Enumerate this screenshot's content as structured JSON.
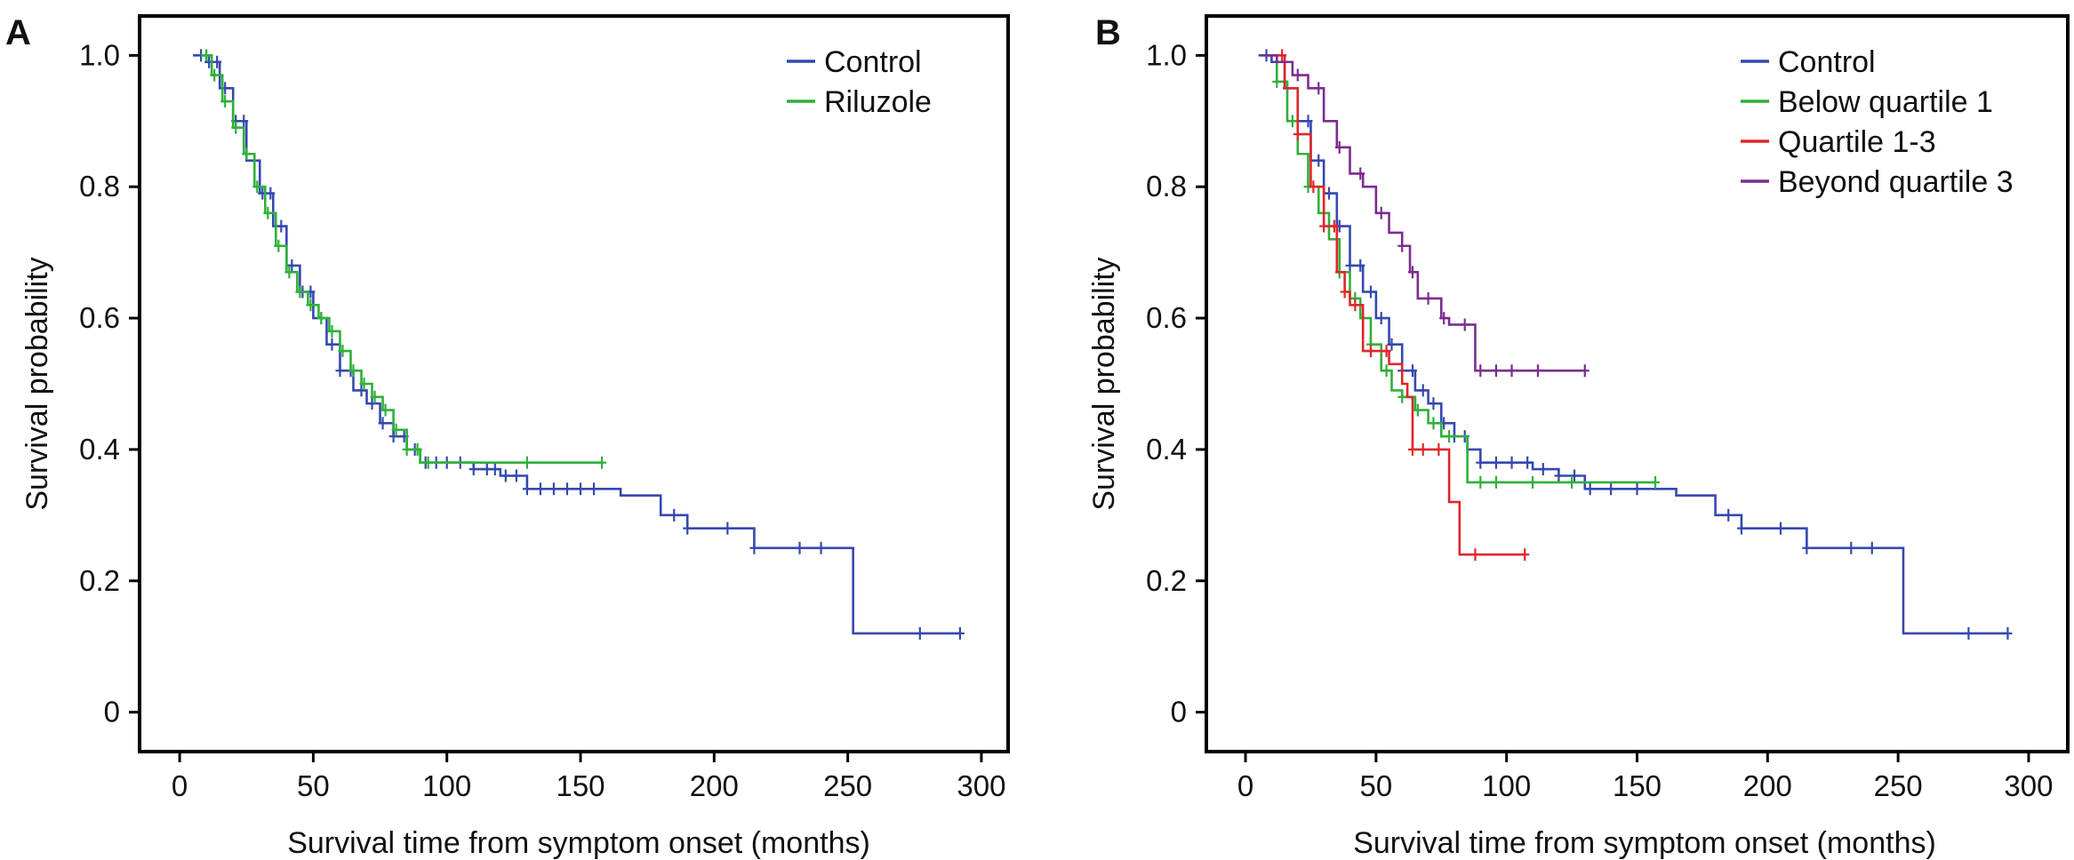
{
  "colors": {
    "control": "#3548b0",
    "riluzole": "#2fb03a",
    "below_q1": "#2fb03a",
    "q1_3": "#e0262a",
    "beyond_q3": "#7b2d8e"
  },
  "chart_data": [
    {
      "panel": "A",
      "type": "line",
      "step": true,
      "xlabel": "Survival time from symptom onset (months)",
      "ylabel": "Survival probability",
      "xlim": [
        -15,
        310
      ],
      "ylim": [
        -0.06,
        1.06
      ],
      "xticks": [
        0,
        50,
        100,
        150,
        200,
        250,
        300
      ],
      "xtick_labels": [
        "0",
        "50",
        "100",
        "150",
        "200",
        "250",
        "300"
      ],
      "yticks": [
        0,
        0.2,
        0.4,
        0.6,
        0.8,
        1.0
      ],
      "ytick_labels": [
        "0",
        "0.2",
        "0.4",
        "0.6",
        "0.8",
        "1.0"
      ],
      "legend_position": "top-right",
      "series": [
        {
          "name": "Control",
          "color_key": "control",
          "x": [
            5,
            10,
            15,
            20,
            25,
            30,
            35,
            40,
            45,
            50,
            55,
            60,
            65,
            70,
            75,
            80,
            85,
            90,
            100,
            110,
            120,
            130,
            150,
            160,
            165,
            175,
            180,
            190,
            200,
            210,
            215,
            230,
            245,
            250,
            252,
            292
          ],
          "y": [
            1.0,
            0.99,
            0.95,
            0.9,
            0.84,
            0.79,
            0.74,
            0.68,
            0.64,
            0.6,
            0.56,
            0.52,
            0.49,
            0.47,
            0.44,
            0.42,
            0.4,
            0.38,
            0.38,
            0.37,
            0.36,
            0.34,
            0.34,
            0.34,
            0.33,
            0.33,
            0.3,
            0.28,
            0.28,
            0.28,
            0.25,
            0.25,
            0.25,
            0.25,
            0.12,
            0.12
          ],
          "censor_x": [
            8,
            11,
            14,
            17,
            21,
            24,
            28,
            31,
            34,
            38,
            42,
            46,
            49,
            53,
            57,
            60,
            64,
            68,
            72,
            76,
            80,
            84,
            88,
            92,
            96,
            100,
            105,
            110,
            115,
            118,
            122,
            126,
            130,
            135,
            140,
            145,
            150,
            155,
            185,
            190,
            205,
            215,
            232,
            240,
            277,
            292
          ]
        },
        {
          "name": "Riluzole",
          "color_key": "riluzole",
          "x": [
            8,
            12,
            16,
            20,
            24,
            28,
            32,
            36,
            40,
            44,
            48,
            52,
            56,
            60,
            64,
            68,
            72,
            76,
            80,
            85,
            90,
            95,
            158
          ],
          "y": [
            1.0,
            0.97,
            0.93,
            0.89,
            0.85,
            0.8,
            0.76,
            0.71,
            0.67,
            0.64,
            0.62,
            0.6,
            0.58,
            0.55,
            0.52,
            0.5,
            0.48,
            0.46,
            0.43,
            0.4,
            0.38,
            0.38,
            0.38
          ],
          "censor_x": [
            10,
            13,
            17,
            21,
            25,
            29,
            33,
            37,
            41,
            45,
            49,
            53,
            57,
            61,
            65,
            69,
            73,
            77,
            81,
            85,
            89,
            93,
            130,
            158
          ]
        }
      ]
    },
    {
      "panel": "B",
      "type": "line",
      "step": true,
      "xlabel": "Survival time from symptom onset (months)",
      "ylabel": "Survival probability",
      "xlim": [
        -15,
        315
      ],
      "ylim": [
        -0.06,
        1.06
      ],
      "xticks": [
        0,
        50,
        100,
        150,
        200,
        250,
        300
      ],
      "xtick_labels": [
        "0",
        "50",
        "100",
        "150",
        "200",
        "250",
        "300"
      ],
      "yticks": [
        0,
        0.2,
        0.4,
        0.6,
        0.8,
        1.0
      ],
      "ytick_labels": [
        "0",
        "0.2",
        "0.4",
        "0.6",
        "0.8",
        "1.0"
      ],
      "legend_position": "top-right",
      "series": [
        {
          "name": "Control",
          "color_key": "control",
          "x": [
            5,
            10,
            15,
            20,
            25,
            30,
            35,
            40,
            45,
            50,
            55,
            60,
            65,
            70,
            75,
            80,
            85,
            90,
            100,
            110,
            120,
            130,
            150,
            160,
            165,
            175,
            180,
            190,
            200,
            210,
            215,
            230,
            245,
            250,
            252,
            292
          ],
          "y": [
            1.0,
            0.99,
            0.95,
            0.9,
            0.84,
            0.79,
            0.74,
            0.68,
            0.64,
            0.6,
            0.56,
            0.52,
            0.49,
            0.47,
            0.44,
            0.42,
            0.4,
            0.38,
            0.38,
            0.37,
            0.36,
            0.34,
            0.34,
            0.34,
            0.33,
            0.33,
            0.3,
            0.28,
            0.28,
            0.28,
            0.25,
            0.25,
            0.25,
            0.25,
            0.12,
            0.12
          ],
          "censor_x": [
            8,
            12,
            16,
            20,
            24,
            28,
            32,
            36,
            40,
            44,
            48,
            52,
            56,
            60,
            64,
            68,
            72,
            76,
            80,
            84,
            90,
            96,
            102,
            108,
            114,
            120,
            126,
            132,
            140,
            150,
            185,
            190,
            205,
            215,
            232,
            240,
            277,
            292
          ]
        },
        {
          "name": "Below quartile 1",
          "color_key": "below_q1",
          "x": [
            8,
            12,
            16,
            20,
            24,
            28,
            32,
            36,
            40,
            44,
            48,
            52,
            56,
            60,
            65,
            70,
            75,
            80,
            85,
            90,
            157
          ],
          "y": [
            1.0,
            0.96,
            0.9,
            0.85,
            0.8,
            0.76,
            0.72,
            0.67,
            0.63,
            0.6,
            0.56,
            0.52,
            0.49,
            0.48,
            0.46,
            0.44,
            0.42,
            0.42,
            0.35,
            0.35,
            0.35
          ],
          "censor_x": [
            12,
            18,
            24,
            30,
            36,
            42,
            48,
            54,
            60,
            66,
            72,
            78,
            90,
            96,
            110,
            125,
            157
          ]
        },
        {
          "name": "Quartile 1-3",
          "color_key": "q1_3",
          "x": [
            10,
            15,
            20,
            25,
            30,
            35,
            38,
            40,
            45,
            50,
            55,
            60,
            62,
            64,
            70,
            75,
            78,
            82,
            107
          ],
          "y": [
            1.0,
            0.95,
            0.88,
            0.8,
            0.74,
            0.67,
            0.64,
            0.62,
            0.55,
            0.55,
            0.53,
            0.5,
            0.48,
            0.4,
            0.4,
            0.4,
            0.32,
            0.24,
            0.24
          ],
          "censor_x": [
            14,
            20,
            26,
            30,
            34,
            38,
            42,
            48,
            54,
            64,
            68,
            74,
            88,
            107
          ]
        },
        {
          "name": "Beyond quartile 3",
          "color_key": "beyond_q3",
          "x": [
            6,
            12,
            18,
            24,
            30,
            35,
            40,
            45,
            50,
            55,
            60,
            63,
            66,
            70,
            75,
            78,
            82,
            88,
            130
          ],
          "y": [
            1.0,
            0.99,
            0.97,
            0.95,
            0.9,
            0.86,
            0.82,
            0.8,
            0.76,
            0.73,
            0.71,
            0.67,
            0.63,
            0.63,
            0.6,
            0.59,
            0.59,
            0.52,
            0.52
          ],
          "censor_x": [
            20,
            28,
            36,
            44,
            52,
            60,
            64,
            70,
            76,
            84,
            90,
            96,
            102,
            112,
            130
          ]
        }
      ]
    }
  ]
}
